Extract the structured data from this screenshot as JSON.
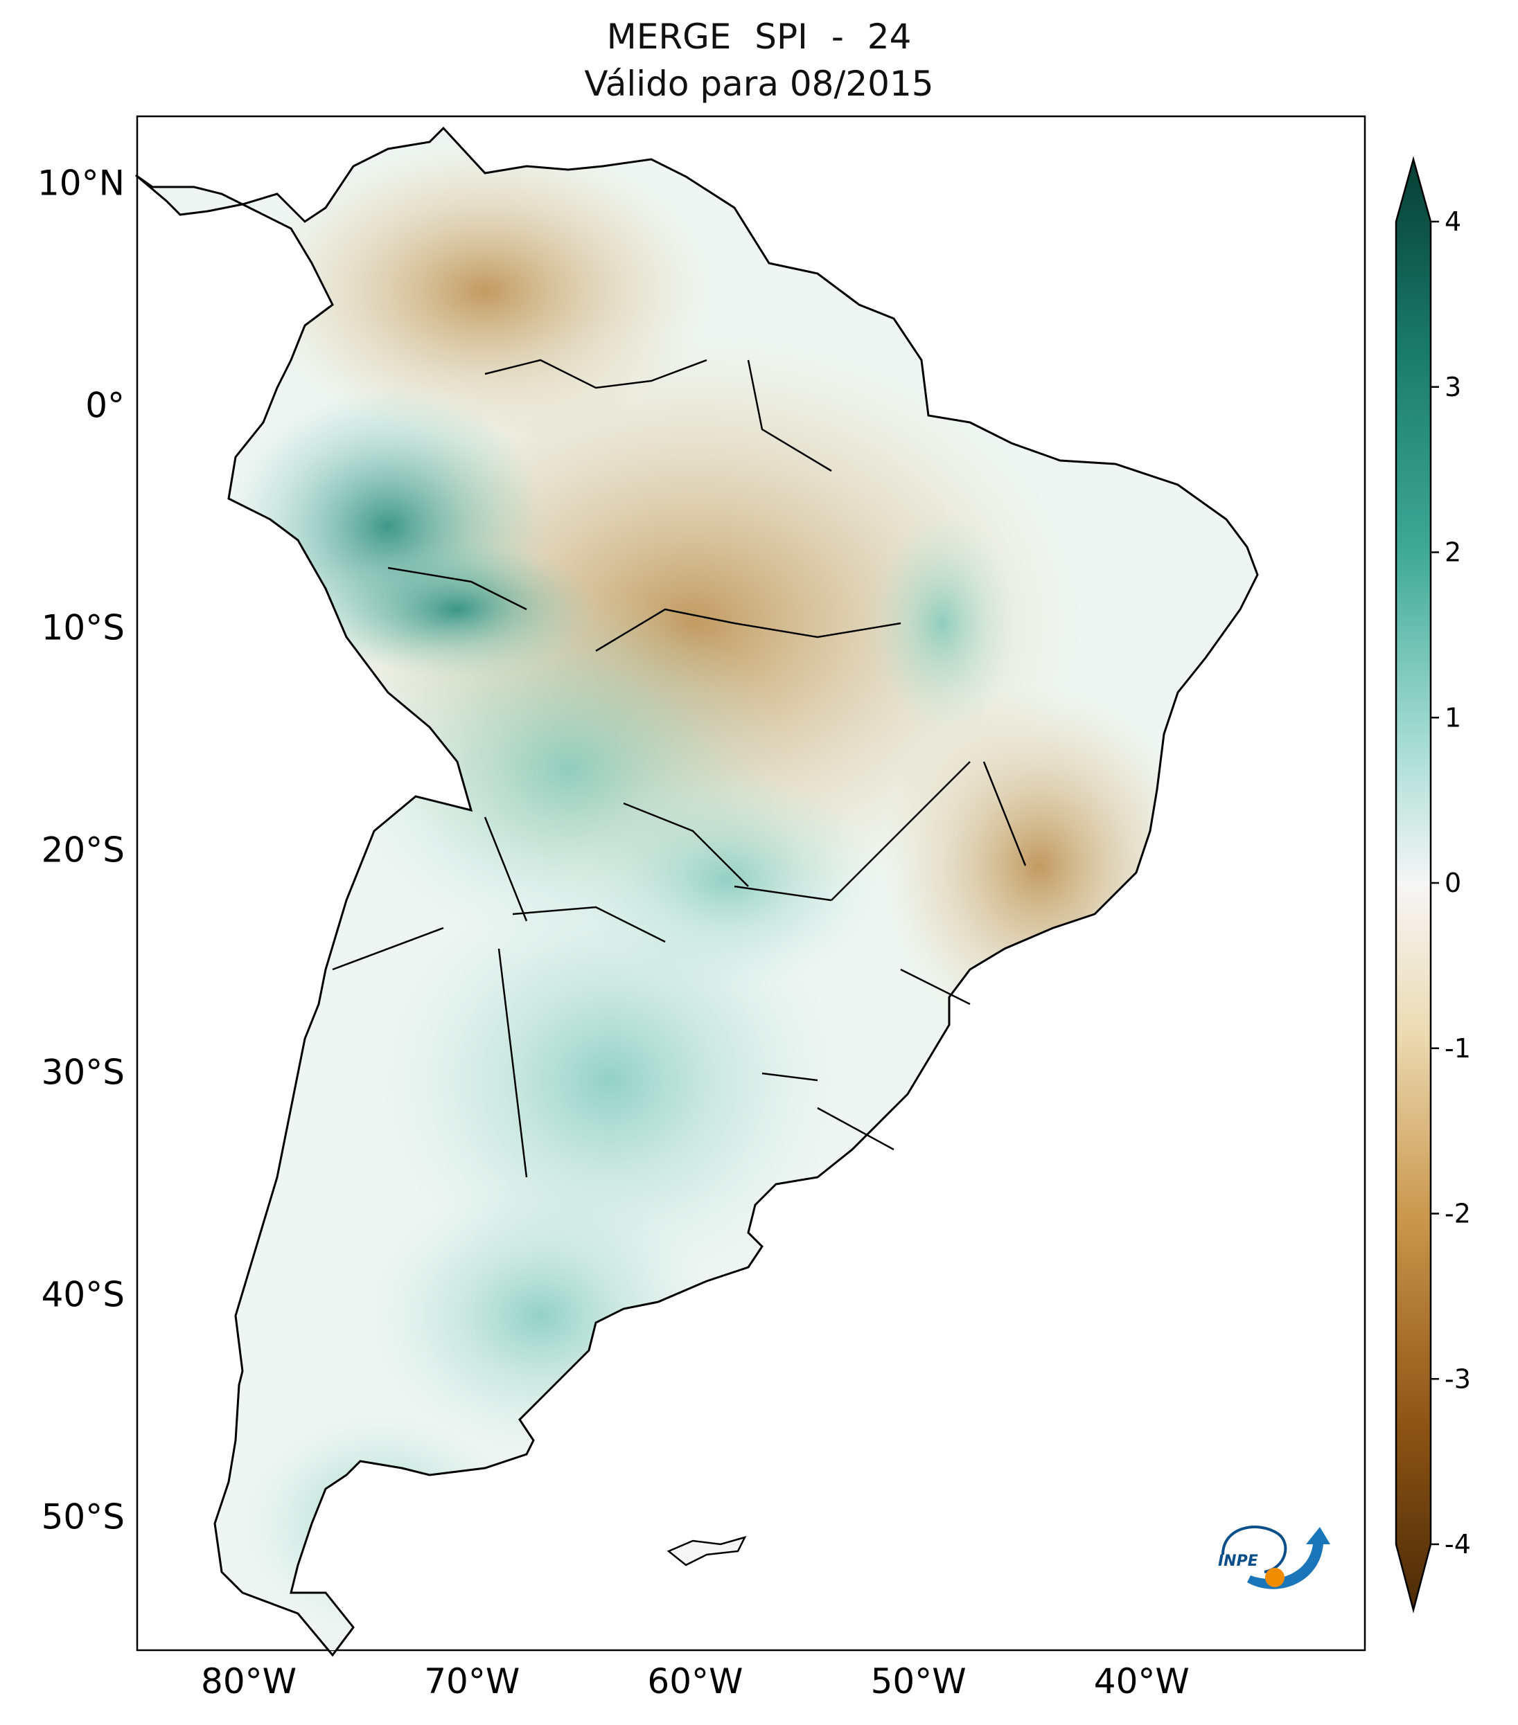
{
  "title": {
    "line1": "MERGE   SPI - 24",
    "line2": "Válido para 08/2015"
  },
  "map": {
    "lat_labels": [
      "10°N",
      "0°",
      "10°S",
      "20°S",
      "30°S",
      "40°S",
      "50°S"
    ],
    "lon_labels": [
      "80°W",
      "70°W",
      "60°W",
      "50°W",
      "40°W"
    ],
    "extent_lon": [
      -85,
      -30
    ],
    "extent_lat": [
      -56,
      13
    ]
  },
  "colorbar": {
    "ticks": [
      "4",
      "3",
      "2",
      "1",
      "0",
      "-1",
      "-2",
      "-3",
      "-4"
    ],
    "range": [
      -4,
      4
    ],
    "colors": {
      "wet_max": "#073e33",
      "wet_high": "#1a7a6a",
      "wet_mid": "#3fa996",
      "wet_low": "#a4dcd1",
      "neutral": "#f6f6f6",
      "dry_low": "#ecdbb4",
      "dry_mid": "#c9974d",
      "dry_high": "#8e5515",
      "dry_max": "#4b2b07"
    }
  },
  "logo": {
    "text": "INPE"
  }
}
